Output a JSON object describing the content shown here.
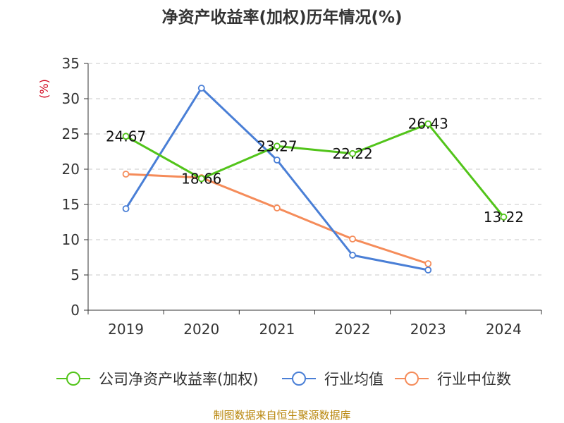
{
  "chart_data": {
    "type": "line",
    "title": "净资产收益率(加权)历年情况(%)",
    "ylabel": "(%)",
    "xlabel": "",
    "categories": [
      "2019",
      "2020",
      "2021",
      "2022",
      "2023",
      "2024"
    ],
    "ylim": [
      0,
      35
    ],
    "yticks": [
      0,
      5,
      10,
      15,
      20,
      25,
      30,
      35
    ],
    "grid": true,
    "legend_position": "bottom",
    "series": [
      {
        "name": "公司净资产收益率(加权)",
        "color": "#52c41a",
        "values": [
          24.67,
          18.66,
          23.27,
          22.22,
          26.43,
          13.22
        ],
        "labels": [
          "24.67",
          "18.66",
          "23.27",
          "22.22",
          "26.43",
          "13.22"
        ]
      },
      {
        "name": "行业均值",
        "color": "#4a7fd6",
        "values": [
          14.4,
          31.5,
          21.3,
          7.8,
          5.7,
          null
        ]
      },
      {
        "name": "行业中位数",
        "color": "#f58c5a",
        "values": [
          19.3,
          18.8,
          14.5,
          10.1,
          6.6,
          null
        ]
      }
    ],
    "source": "制图数据来自恒生聚源数据库"
  }
}
